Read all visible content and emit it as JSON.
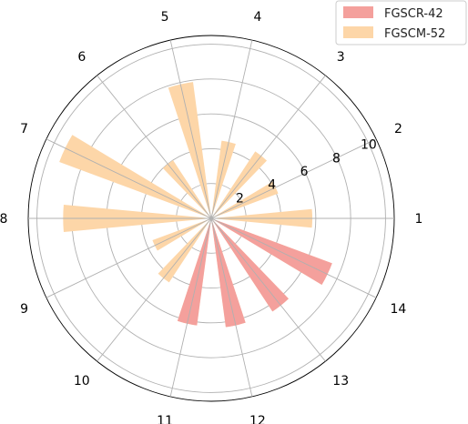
{
  "chart_data": {
    "type": "polar-bar",
    "categories": [
      "1",
      "2",
      "3",
      "4",
      "5",
      "6",
      "7",
      "8",
      "9",
      "10",
      "11",
      "12",
      "13",
      "14"
    ],
    "category_angles_deg": [
      0,
      25.7,
      51.4,
      77.1,
      102.9,
      128.6,
      154.3,
      180,
      205.7,
      231.4,
      257.1,
      282.9,
      308.6,
      334.3
    ],
    "radial_ticks": [
      "2",
      "4",
      "6",
      "8",
      "10"
    ],
    "radial_tick_values": [
      2,
      4,
      6,
      8,
      10
    ],
    "rlim": [
      0,
      10.5
    ],
    "grid": true,
    "legend_position": "top-right",
    "series": [
      {
        "name": "FGSCR-42",
        "color": "#f4a09c",
        "values": [
          null,
          null,
          null,
          null,
          null,
          null,
          null,
          null,
          null,
          null,
          6.2,
          6.3,
          6.4,
          7.4
        ]
      },
      {
        "name": "FGSCM-52",
        "color": "#fdd6a8",
        "values": [
          5.8,
          4.1,
          4.6,
          4.5,
          7.9,
          4.0,
          9.3,
          8.5,
          3.6,
          4.4,
          6.2,
          6.3,
          6.4,
          7.4
        ]
      }
    ]
  }
}
